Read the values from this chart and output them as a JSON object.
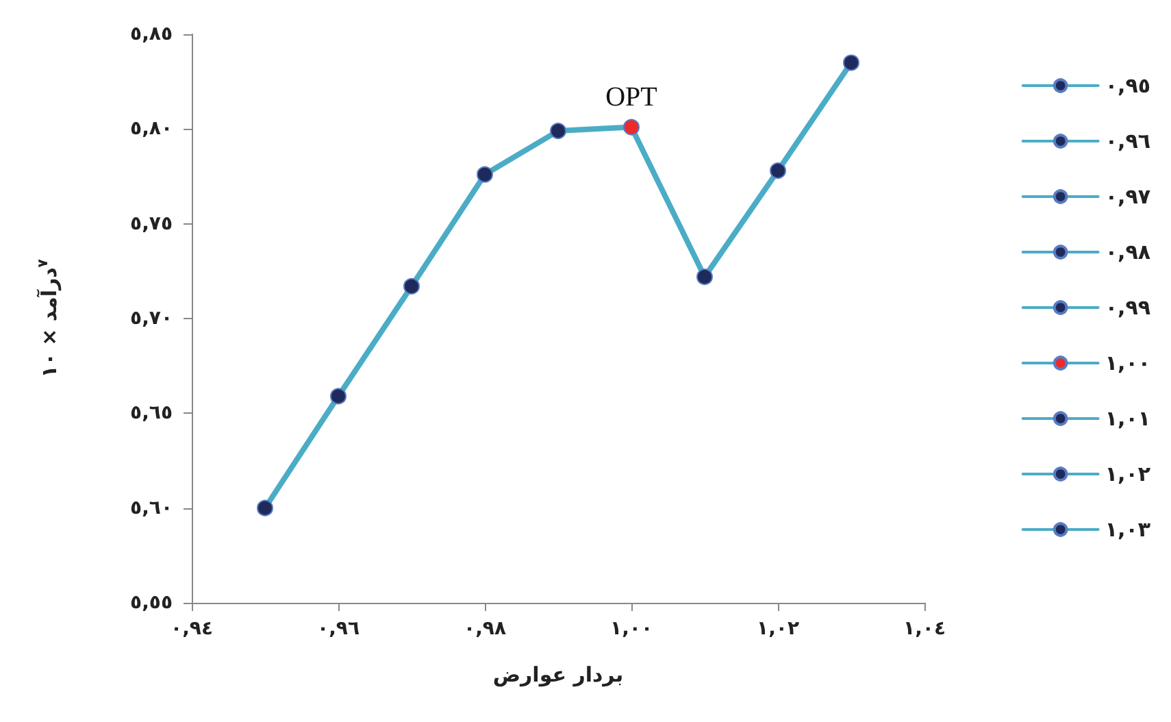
{
  "chart_data": {
    "type": "line",
    "xlabel": "بردار عوارض",
    "ylabel": "درآمد × ١٠$^{٧}$",
    "x": [
      0.95,
      0.96,
      0.97,
      0.98,
      0.99,
      1.0,
      1.01,
      1.02,
      1.03
    ],
    "series": [
      {
        "color": "#4bacc6",
        "marker": "none",
        "values": [
          5.6,
          5.659,
          5.717,
          5.776,
          5.799,
          5.801,
          5.722,
          5.778,
          5.835
        ]
      },
      {
        "name": "٠,٩٥",
        "color": "#1f2a5c",
        "x": [
          0.95
        ],
        "values": [
          5.6
        ]
      },
      {
        "name": "٠,٩٦",
        "color": "#1f2a5c",
        "x": [
          0.96
        ],
        "values": [
          5.659
        ]
      },
      {
        "name": "٠,٩٧",
        "color": "#1f2a5c",
        "x": [
          0.97
        ],
        "values": [
          5.717
        ]
      },
      {
        "name": "٠,٩٨",
        "color": "#1f2a5c",
        "x": [
          0.98
        ],
        "values": [
          5.776
        ]
      },
      {
        "name": "٠,٩٩",
        "color": "#1f2a5c",
        "x": [
          0.99
        ],
        "values": [
          5.799
        ]
      },
      {
        "name": "١,٠٠",
        "color": "#ee2a2a",
        "x": [
          1.0
        ],
        "values": [
          5.801
        ]
      },
      {
        "name": "١,٠١",
        "color": "#1f2a5c",
        "x": [
          1.01
        ],
        "values": [
          5.722
        ]
      },
      {
        "name": "١,٠٢",
        "color": "#1f2a5c",
        "x": [
          1.02
        ],
        "values": [
          5.778
        ]
      },
      {
        "name": "١,٠٣",
        "color": "#1f2a5c",
        "x": [
          1.03
        ],
        "values": [
          5.835
        ]
      }
    ],
    "annotations": [
      {
        "text": "OPT",
        "x": 1.0,
        "y": 5.801
      }
    ],
    "xlim": [
      0.94,
      1.04
    ],
    "xticks": [
      {
        "value": 0.94,
        "label": "٠,٩٤"
      },
      {
        "value": 0.96,
        "label": "٠,٩٦"
      },
      {
        "value": 0.98,
        "label": "٠,٩٨"
      },
      {
        "value": 1.0,
        "label": "١,٠٠"
      },
      {
        "value": 1.02,
        "label": "١,٠٢"
      },
      {
        "value": 1.04,
        "label": "١,٠٤"
      }
    ],
    "ylim": [
      5.55,
      5.85
    ],
    "yticks": [
      {
        "value": 5.55,
        "label": "٥,٥٥"
      },
      {
        "value": 5.6,
        "label": "٥,٦٠"
      },
      {
        "value": 5.65,
        "label": "٥,٦٥"
      },
      {
        "value": 5.7,
        "label": "٥,٧٠"
      },
      {
        "value": 5.75,
        "label": "٥,٧٥"
      },
      {
        "value": 5.8,
        "label": "٥,٨٠"
      },
      {
        "value": 5.85,
        "label": "٥,٨٥"
      }
    ],
    "grid": false,
    "legend": "right",
    "marker": "circle",
    "line_style": "solid"
  }
}
